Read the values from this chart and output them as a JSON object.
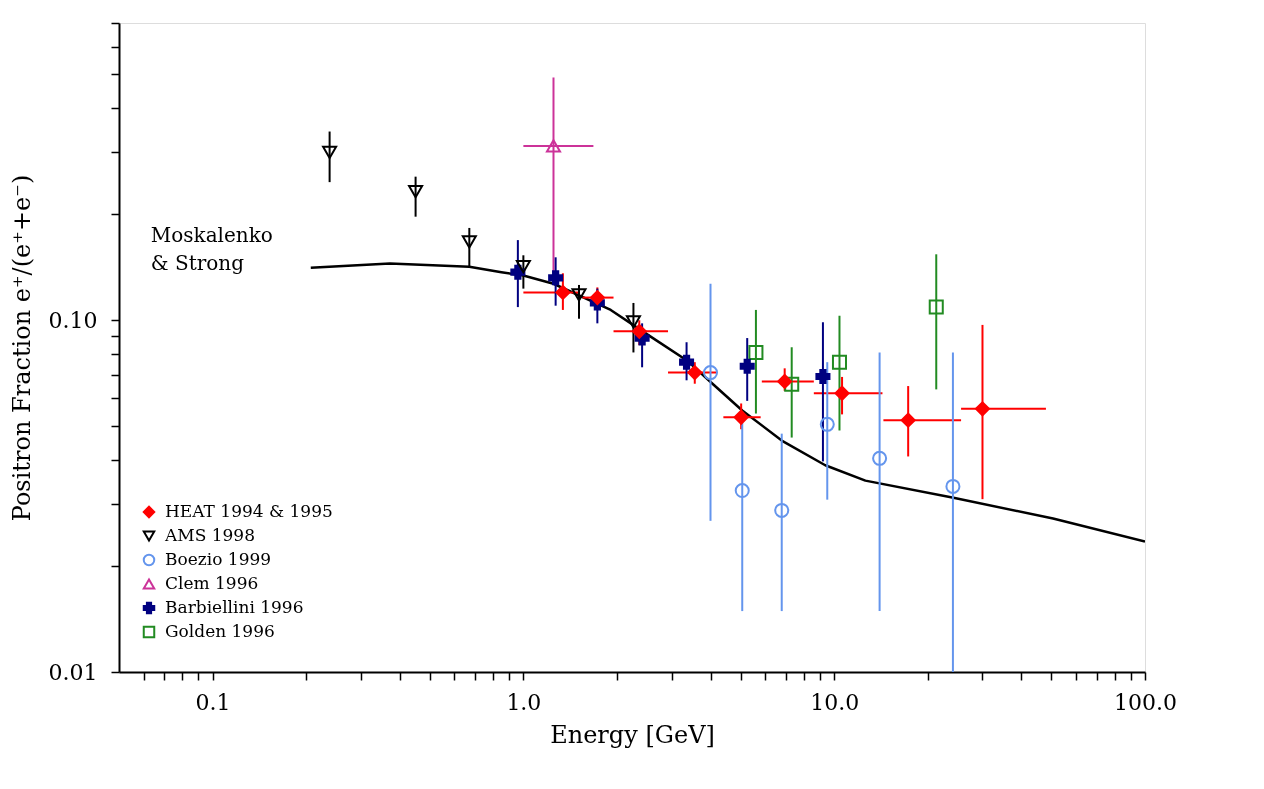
{
  "chart_data": {
    "type": "scatter",
    "xlabel": "Energy [GeV]",
    "ylabel": "Positron Fraction e⁺/(e⁺+e⁻)",
    "log": "xy",
    "grid": false,
    "legend": "bottom left",
    "xlim": [
      0.05,
      100
    ],
    "ylim": [
      0.01,
      0.7
    ],
    "xticks": [
      {
        "value": 0.06,
        "label": null
      },
      {
        "value": 0.07,
        "label": null
      },
      {
        "value": 0.08,
        "label": null
      },
      {
        "value": 0.09,
        "label": null
      },
      {
        "value": 0.1,
        "label": "0.1"
      },
      {
        "value": 0.2,
        "label": null
      },
      {
        "value": 0.3,
        "label": null
      },
      {
        "value": 0.4,
        "label": null
      },
      {
        "value": 0.5,
        "label": null
      },
      {
        "value": 0.6,
        "label": null
      },
      {
        "value": 0.7,
        "label": null
      },
      {
        "value": 0.8,
        "label": null
      },
      {
        "value": 0.9,
        "label": null
      },
      {
        "value": 1,
        "label": "1.0"
      },
      {
        "value": 2,
        "label": null
      },
      {
        "value": 3,
        "label": null
      },
      {
        "value": 4,
        "label": null
      },
      {
        "value": 5,
        "label": null
      },
      {
        "value": 6,
        "label": null
      },
      {
        "value": 7,
        "label": null
      },
      {
        "value": 8,
        "label": null
      },
      {
        "value": 9,
        "label": null
      },
      {
        "value": 10,
        "label": "10.0"
      },
      {
        "value": 20,
        "label": null
      },
      {
        "value": 30,
        "label": null
      },
      {
        "value": 40,
        "label": null
      },
      {
        "value": 50,
        "label": null
      },
      {
        "value": 60,
        "label": null
      },
      {
        "value": 70,
        "label": null
      },
      {
        "value": 80,
        "label": null
      },
      {
        "value": 90,
        "label": null
      },
      {
        "value": 100,
        "label": "100.0"
      }
    ],
    "yticks": [
      {
        "value": 0.01,
        "label": "0.01"
      },
      {
        "value": 0.02,
        "label": null
      },
      {
        "value": 0.03,
        "label": null
      },
      {
        "value": 0.04,
        "label": null
      },
      {
        "value": 0.05,
        "label": null
      },
      {
        "value": 0.06,
        "label": null
      },
      {
        "value": 0.07,
        "label": null
      },
      {
        "value": 0.08,
        "label": null
      },
      {
        "value": 0.09,
        "label": null
      },
      {
        "value": 0.1,
        "label": "0.10"
      },
      {
        "value": 0.2,
        "label": null
      },
      {
        "value": 0.3,
        "label": null
      },
      {
        "value": 0.4,
        "label": null
      },
      {
        "value": 0.5,
        "label": null
      },
      {
        "value": 0.6,
        "label": null
      },
      {
        "value": 0.7,
        "label": null
      }
    ],
    "series": [
      {
        "name": "Moskalenko & Strong",
        "type": "line",
        "color": "#000000",
        "marker": "none",
        "x": [
          0.207,
          0.372,
          0.67,
          0.85,
          1.0,
          1.25,
          1.91,
          2.56,
          3.35,
          4.06,
          5.06,
          6.78,
          9.36,
          12.6,
          24.2,
          50.6,
          100
        ],
        "values": [
          0.141,
          0.145,
          0.142,
          0.137,
          0.134,
          0.127,
          0.107,
          0.09,
          0.077,
          0.066,
          0.0554,
          0.0455,
          0.0387,
          0.035,
          0.0313,
          0.0273,
          0.0235
        ]
      },
      {
        "name": "HEAT 1994 & 1995",
        "color": "#ff0000",
        "marker": "diamond",
        "x": [
          1.34,
          1.73,
          2.36,
          3.56,
          5.02,
          6.93,
          10.6,
          17.3,
          30
        ],
        "values": [
          0.12,
          0.116,
          0.093,
          0.071,
          0.053,
          0.067,
          0.062,
          0.052,
          0.056
        ],
        "errors": [
          [
            0.107,
            0.136
          ],
          [
            0.108,
            0.124
          ],
          [
            0.085,
            0.1
          ],
          [
            0.066,
            0.076
          ],
          [
            0.049,
            0.058
          ],
          [
            0.063,
            0.073
          ],
          [
            0.054,
            0.069
          ],
          [
            0.041,
            0.065
          ],
          [
            0.031,
            0.097
          ]
        ],
        "xerrors": [
          [
            1.0,
            1.5
          ],
          [
            1.55,
            1.95
          ],
          [
            1.95,
            2.92
          ],
          [
            2.92,
            4.2
          ],
          [
            4.4,
            5.8
          ],
          [
            5.85,
            8.6
          ],
          [
            8.6,
            14.3
          ],
          [
            14.4,
            25.6
          ],
          [
            25.6,
            48
          ]
        ]
      },
      {
        "name": "AMS 1998",
        "color": "#000000",
        "marker": "triangle-down",
        "x": [
          0.238,
          0.45,
          0.67,
          1.0,
          1.51,
          2.26
        ],
        "values": [
          0.3,
          0.232,
          0.167,
          0.142,
          0.118,
          0.099
        ],
        "errors": [
          [
            0.247,
            0.344
          ],
          [
            0.197,
            0.256
          ],
          [
            0.142,
            0.183
          ],
          [
            0.123,
            0.153
          ],
          [
            0.101,
            0.126
          ],
          [
            0.081,
            0.112
          ]
        ]
      },
      {
        "name": "Boezio 1999",
        "color": "#6495ed",
        "marker": "circle",
        "x": [
          4.0,
          5.06,
          6.78,
          9.5,
          14.0,
          24.1
        ],
        "values": [
          0.071,
          0.0328,
          0.0288,
          0.0506,
          0.0405,
          0.0337
        ],
        "errors": [
          [
            0.0269,
            0.127
          ],
          [
            0.0149,
            0.055
          ],
          [
            0.0149,
            0.0476
          ],
          [
            0.0309,
            0.076
          ],
          [
            0.0149,
            0.081
          ],
          [
            0.01,
            0.081
          ]
        ]
      },
      {
        "name": "Clem 1996",
        "color": "#cc3399",
        "marker": "triangle-up",
        "x": [
          1.25
        ],
        "values": [
          0.313
        ],
        "errors": [
          [
            0.136,
            0.49
          ]
        ],
        "xerrors": [
          [
            1.0,
            1.68
          ]
        ]
      },
      {
        "name": "Barbiellini 1996",
        "color": "#000080",
        "marker": "cross",
        "x": [
          0.96,
          1.27,
          1.73,
          2.41,
          3.35,
          5.25,
          9.2
        ],
        "values": [
          0.137,
          0.132,
          0.112,
          0.089,
          0.076,
          0.074,
          0.0692
        ],
        "errors": [
          [
            0.109,
            0.169
          ],
          [
            0.11,
            0.151
          ],
          [
            0.098,
            0.123
          ],
          [
            0.0735,
            0.098
          ],
          [
            0.0675,
            0.0866
          ],
          [
            0.059,
            0.089
          ],
          [
            0.0397,
            0.0987
          ]
        ]
      },
      {
        "name": "Golden 1996",
        "color": "#228b22",
        "marker": "square",
        "x": [
          5.6,
          7.3,
          10.4,
          21.3
        ],
        "values": [
          0.081,
          0.0658,
          0.076,
          0.109
        ],
        "errors": [
          [
            0.0543,
            0.107
          ],
          [
            0.0464,
            0.0838
          ],
          [
            0.0486,
            0.103
          ],
          [
            0.0636,
            0.154
          ]
        ]
      }
    ]
  }
}
